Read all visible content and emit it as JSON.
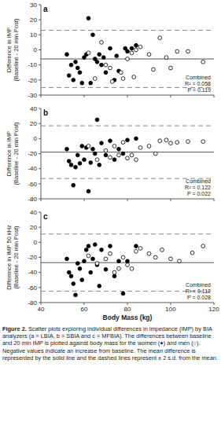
{
  "chart_data": [
    {
      "type": "scatter",
      "title": "a",
      "ylabel": "Difference in IMP (Baseline - 20 min Post)",
      "xlim": [
        40,
        120
      ],
      "xticks": [
        40,
        60,
        80,
        100,
        120
      ],
      "ylim": [
        -30,
        30
      ],
      "yticks": [
        -30,
        -20,
        -10,
        0,
        10,
        20,
        30
      ],
      "tick_labels": "y",
      "annotations": [
        "Combined",
        "R² = 0.058",
        "P = 0.119"
      ],
      "mean_difference": -6,
      "upper_limit": 13,
      "lower_limit": -25,
      "series": [
        {
          "color": "#000000",
          "marker": "filled",
          "x": [
            52,
            53,
            54,
            55,
            56,
            57,
            58,
            59,
            60,
            61,
            62,
            63,
            64,
            65,
            66,
            67,
            68,
            69,
            70,
            72,
            74,
            75,
            76,
            79,
            80,
            82,
            84
          ],
          "values": [
            -3,
            -17,
            -10,
            -20,
            -8,
            -12,
            -15,
            -22,
            -5,
            -3,
            21,
            -22,
            10,
            -6,
            -8,
            -3,
            -10,
            -5,
            -15,
            1,
            -20,
            -4,
            -14,
            1,
            -1,
            1,
            3
          ]
        },
        {
          "color": "#000000",
          "marker": "open",
          "x": [
            62,
            65,
            68,
            70,
            72,
            73,
            77,
            78,
            80,
            82,
            83,
            84,
            86,
            90,
            92,
            95,
            98,
            100,
            103,
            108,
            115
          ],
          "values": [
            -2,
            -19,
            5,
            -10,
            -12,
            -21,
            -15,
            -19,
            -6,
            -2,
            -18,
            0,
            2,
            -3,
            -13,
            8,
            -5,
            -12,
            -1,
            -1,
            -8
          ]
        }
      ]
    },
    {
      "type": "scatter",
      "title": "b",
      "ylabel": "Difference in IMP (Baseline - 20 min Post)",
      "xlim": [
        40,
        120
      ],
      "xticks": [
        40,
        60,
        80,
        100,
        120
      ],
      "ylim": [
        -80,
        40
      ],
      "yticks": [
        -80,
        -60,
        -40,
        -20,
        0,
        20,
        40
      ],
      "tick_labels": "y",
      "annotations": [
        "Combined",
        "R² = 0.122",
        "P = 0.022"
      ],
      "mean_difference": -18,
      "upper_limit": 17,
      "lower_limit": -53,
      "series": [
        {
          "color": "#000000",
          "marker": "filled",
          "x": [
            52,
            53,
            54,
            55,
            56,
            57,
            58,
            59,
            60,
            61,
            62,
            63,
            64,
            65,
            66,
            67,
            68,
            70,
            72,
            74,
            76,
            78,
            80,
            84
          ],
          "values": [
            -14,
            -30,
            -35,
            -62,
            -38,
            -22,
            -33,
            -10,
            -28,
            -12,
            -70,
            -32,
            -14,
            -20,
            25,
            -35,
            -6,
            -22,
            -3,
            -28,
            -14,
            -20,
            -2,
            0
          ]
        },
        {
          "color": "#000000",
          "marker": "open",
          "x": [
            62,
            66,
            70,
            72,
            74,
            76,
            78,
            80,
            82,
            84,
            86,
            90,
            93,
            95,
            98,
            100,
            103,
            108,
            115
          ],
          "values": [
            -10,
            -28,
            -16,
            -25,
            -10,
            -22,
            -5,
            -26,
            -22,
            -28,
            -12,
            -10,
            -20,
            -3,
            -2,
            -6,
            -5,
            -4,
            -4
          ]
        }
      ]
    },
    {
      "type": "scatter",
      "title": "c",
      "ylabel": "Difference in IMP 50 kHz (Baseline - 20 min Post)",
      "xlabel": "Body Mass (kg)",
      "xlim": [
        40,
        120
      ],
      "xticks": [
        40,
        60,
        80,
        100,
        120
      ],
      "ylim": [
        -80,
        40
      ],
      "yticks": [
        -80,
        -60,
        -40,
        -20,
        0,
        20,
        40
      ],
      "annotations": [
        "Combined",
        "R² = 0.112",
        "P = 0.028"
      ],
      "mean_difference": -27,
      "upper_limit": 11,
      "lower_limit": -65,
      "series": [
        {
          "color": "#000000",
          "marker": "filled",
          "x": [
            52,
            53,
            54,
            55,
            56,
            57,
            58,
            59,
            60,
            61,
            62,
            63,
            64,
            65,
            66,
            67,
            68,
            70,
            72,
            74,
            76,
            78,
            80,
            84
          ],
          "values": [
            -22,
            -40,
            -45,
            -55,
            -70,
            -28,
            -35,
            -50,
            -25,
            -10,
            -5,
            -40,
            -22,
            -3,
            -30,
            -58,
            -10,
            -36,
            -5,
            -45,
            -25,
            -68,
            -25,
            -5
          ]
        },
        {
          "color": "#000000",
          "marker": "open",
          "x": [
            62,
            66,
            70,
            72,
            74,
            76,
            78,
            80,
            82,
            84,
            86,
            90,
            93,
            96,
            100,
            104,
            110,
            115
          ],
          "values": [
            -18,
            -28,
            -22,
            -15,
            -40,
            -35,
            -20,
            -30,
            -35,
            -12,
            -8,
            -15,
            -20,
            -10,
            -22,
            -25,
            -14,
            -5
          ]
        }
      ]
    }
  ],
  "caption": {
    "label": "Figure 2.",
    "text": "Scatter plots exploring individual differences in impedance (IMP) by BIA analyzers (a = LBIA, b = SBIA and c = MFBIA). The differences between baseline and 20 min IMP is plotted against body mass for the women (●) and men (○). Negative values indicate an increase from baseline. The mean difference is represented by the solid line and the dashed lines represent ± 2 s.d. from the mean."
  }
}
